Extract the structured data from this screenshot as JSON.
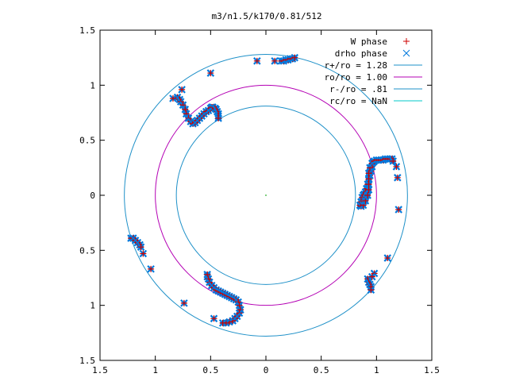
{
  "chart_data": {
    "type": "scatter",
    "title": "m3/n1.5/k170/0.81/512",
    "xlabel": "",
    "ylabel": "",
    "xlim": [
      -1.5,
      1.5
    ],
    "ylim": [
      -1.5,
      1.5
    ],
    "x_ticks": [
      -1.5,
      -1,
      -0.5,
      0,
      0.5,
      1,
      1.5
    ],
    "x_tick_labels": [
      "1.5",
      "1",
      "0.5",
      "0",
      "0.5",
      "1",
      "1.5"
    ],
    "y_ticks": [
      -1.5,
      -1,
      -0.5,
      0,
      0.5,
      1,
      1.5
    ],
    "y_tick_labels": [
      "1.5",
      "1",
      "0.5",
      "0",
      "0.5",
      "1",
      "1.5"
    ],
    "grid": false,
    "legend_position": "top-right",
    "circles": [
      {
        "name": "r+/ro = 1.28",
        "radius": 1.28,
        "color": "#1e90c8"
      },
      {
        "name": "ro/ro = 1.00",
        "radius": 1.0,
        "color": "#b400b4"
      },
      {
        "name": "r-/ro = .81",
        "radius": 0.81,
        "color": "#1e90c8"
      },
      {
        "name": "rc/ro = NaN",
        "radius": null,
        "color": "#00c8c8"
      }
    ],
    "marker_series": [
      {
        "name": "W phase",
        "marker": "plus",
        "color": "#cc0000"
      },
      {
        "name": "drho phase",
        "marker": "x",
        "color": "#0078dc"
      }
    ],
    "arms": [
      {
        "x": [
          0.14,
          0.16,
          0.18,
          0.2,
          0.22,
          0.24,
          0.26
        ],
        "y": [
          1.22,
          1.22,
          1.23,
          1.23,
          1.24,
          1.24,
          1.25
        ]
      },
      {
        "x": [
          -0.8,
          -0.78,
          -0.77,
          -0.75,
          -0.73,
          -0.72,
          -0.7,
          -0.68,
          -0.66,
          -0.64,
          -0.62,
          -0.6,
          -0.58,
          -0.56,
          -0.54,
          -0.52,
          -0.5,
          -0.49,
          -0.48,
          -0.46,
          -0.45,
          -0.44,
          -0.43,
          -0.43,
          -0.43
        ],
        "y": [
          0.89,
          0.87,
          0.85,
          0.82,
          0.78,
          0.74,
          0.7,
          0.67,
          0.65,
          0.66,
          0.68,
          0.7,
          0.72,
          0.74,
          0.76,
          0.77,
          0.79,
          0.8,
          0.8,
          0.79,
          0.78,
          0.76,
          0.74,
          0.72,
          0.7
        ]
      },
      {
        "x": [
          0.97,
          0.96,
          0.95,
          0.94,
          0.93,
          0.92,
          0.91,
          0.9,
          0.89,
          0.88,
          0.87,
          0.86,
          0.85,
          0.86,
          0.88,
          0.9,
          0.92,
          0.93,
          0.93,
          0.93,
          0.93,
          0.94,
          0.96,
          0.98,
          1.0,
          1.02,
          1.04,
          1.06,
          1.08,
          1.1,
          1.12,
          1.14,
          1.15
        ],
        "y": [
          0.3,
          0.26,
          0.22,
          0.18,
          0.14,
          0.1,
          0.06,
          0.03,
          0.01,
          0.0,
          -0.02,
          -0.06,
          -0.09,
          -0.1,
          -0.09,
          -0.05,
          0.0,
          0.05,
          0.1,
          0.15,
          0.2,
          0.25,
          0.29,
          0.31,
          0.32,
          0.32,
          0.32,
          0.32,
          0.33,
          0.33,
          0.33,
          0.33,
          0.31
        ]
      },
      {
        "x": [
          -1.22,
          -1.2,
          -1.18,
          -1.16,
          -1.14,
          -1.13
        ],
        "y": [
          -0.39,
          -0.39,
          -0.41,
          -0.43,
          -0.45,
          -0.47
        ]
      },
      {
        "x": [
          -0.53,
          -0.53,
          -0.52,
          -0.51,
          -0.49,
          -0.47,
          -0.45,
          -0.43,
          -0.41,
          -0.39,
          -0.37,
          -0.35,
          -0.33,
          -0.31,
          -0.29,
          -0.27,
          -0.25,
          -0.24,
          -0.23,
          -0.24,
          -0.26,
          -0.28,
          -0.3,
          -0.33,
          -0.36,
          -0.39
        ],
        "y": [
          -0.74,
          -0.72,
          -0.76,
          -0.79,
          -0.82,
          -0.84,
          -0.86,
          -0.87,
          -0.88,
          -0.89,
          -0.9,
          -0.91,
          -0.92,
          -0.93,
          -0.94,
          -0.95,
          -0.97,
          -1.0,
          -1.04,
          -1.07,
          -1.1,
          -1.12,
          -1.14,
          -1.15,
          -1.16,
          -1.16
        ]
      },
      {
        "x": [
          0.92,
          0.93,
          0.94,
          0.95,
          0.95
        ],
        "y": [
          -0.76,
          -0.79,
          -0.81,
          -0.83,
          -0.86
        ]
      }
    ],
    "scattered_points": [
      {
        "x": -0.08,
        "y": 1.22
      },
      {
        "x": 0.08,
        "y": 1.22
      },
      {
        "x": -0.5,
        "y": 1.11
      },
      {
        "x": -0.76,
        "y": 0.96
      },
      {
        "x": -0.84,
        "y": 0.88
      },
      {
        "x": 1.18,
        "y": 0.26
      },
      {
        "x": 1.19,
        "y": 0.16
      },
      {
        "x": 1.2,
        "y": -0.13
      },
      {
        "x": -1.11,
        "y": -0.53
      },
      {
        "x": -1.04,
        "y": -0.67
      },
      {
        "x": -0.74,
        "y": -0.98
      },
      {
        "x": -0.47,
        "y": -1.12
      },
      {
        "x": 1.1,
        "y": -0.57
      },
      {
        "x": 0.98,
        "y": -0.71
      },
      {
        "x": 0.96,
        "y": -0.74
      }
    ],
    "drho_only_points": [
      {
        "x": 0.0,
        "y": 0.0
      }
    ]
  }
}
